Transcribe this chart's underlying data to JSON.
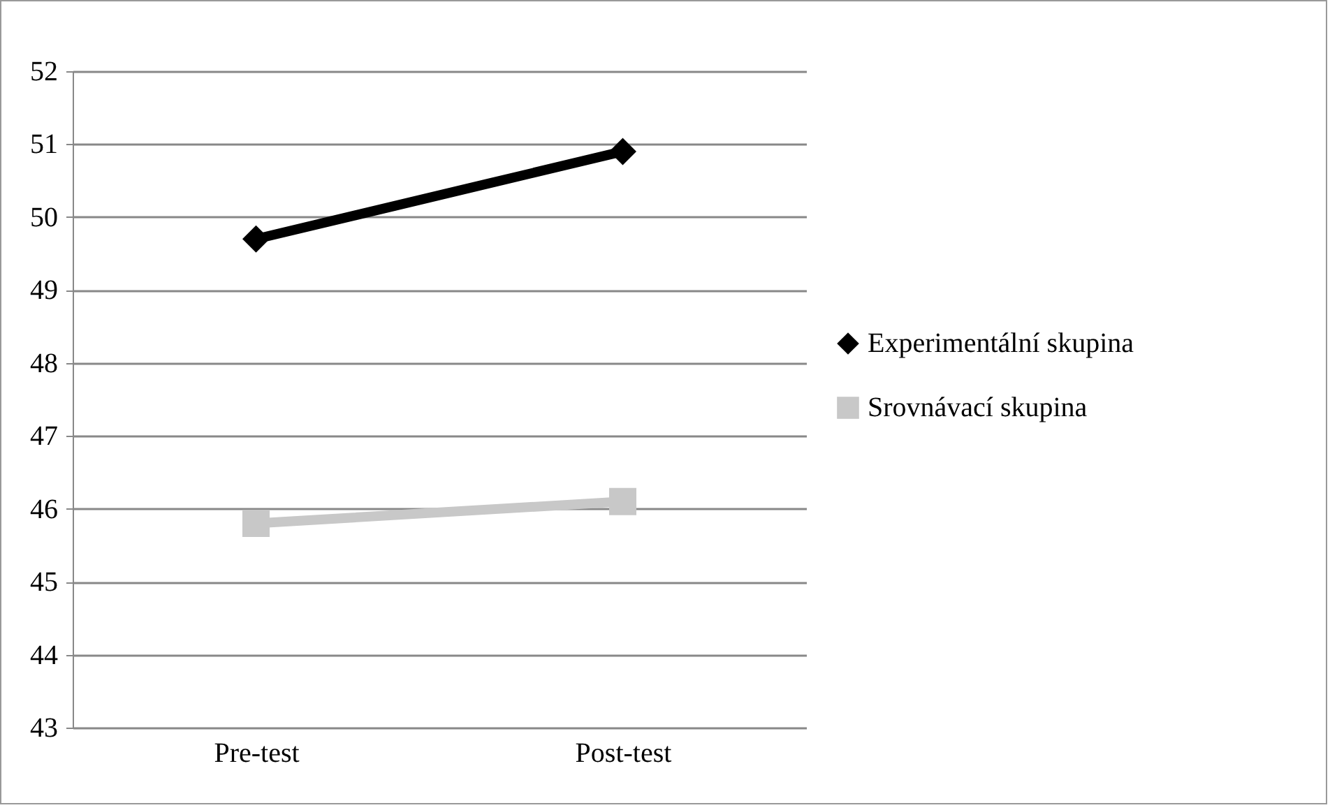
{
  "chart_data": {
    "type": "line",
    "categories": [
      "Pre-test",
      "Post-test"
    ],
    "series": [
      {
        "name": "Experimentální skupina",
        "color": "#000000",
        "marker": "diamond",
        "values": [
          49.7,
          50.9
        ]
      },
      {
        "name": "Srovnávací skupina",
        "color": "#c8c8c8",
        "marker": "square",
        "values": [
          45.8,
          46.1
        ]
      }
    ],
    "ylim": [
      43,
      52
    ],
    "yticks": [
      43,
      44,
      45,
      46,
      47,
      48,
      49,
      50,
      51,
      52
    ],
    "grid": "y",
    "legend": "right",
    "line_style": "solid"
  }
}
